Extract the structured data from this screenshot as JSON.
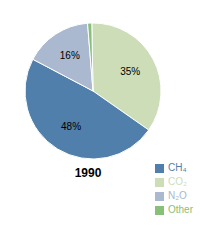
{
  "chart_data": {
    "type": "pie",
    "title": "1990",
    "categories": [
      "CO₂",
      "CH₄",
      "N₂O",
      "Other"
    ],
    "values": [
      35,
      48,
      16,
      1
    ],
    "value_labels": [
      "35%",
      "48%",
      "16%",
      null
    ],
    "colors": [
      "#ccddb8",
      "#4f7faa",
      "#aab8d0",
      "#88c078"
    ],
    "data_labels": true,
    "legend": "lower right"
  }
}
